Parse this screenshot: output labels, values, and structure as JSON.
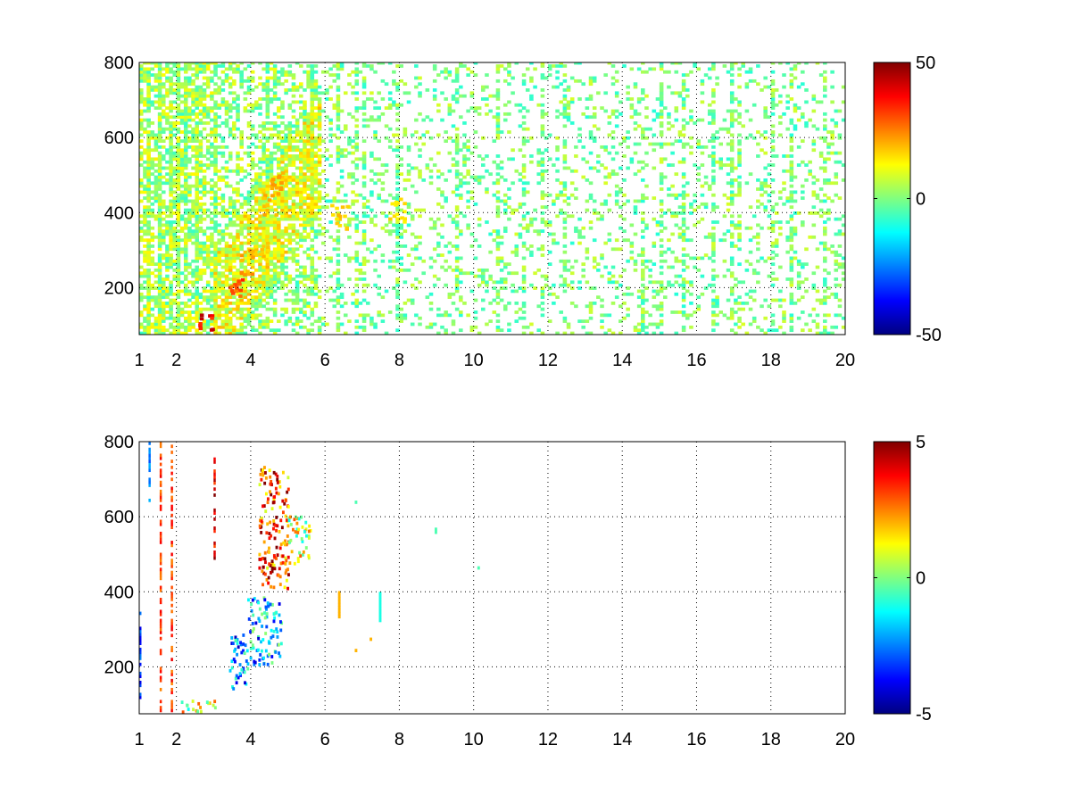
{
  "chart_data": [
    {
      "type": "heatmap",
      "title": "",
      "xlabel": "",
      "ylabel": "",
      "xlim": [
        1,
        20
      ],
      "ylim": [
        75,
        800
      ],
      "xticks": [
        1,
        2,
        4,
        6,
        8,
        10,
        12,
        14,
        16,
        18,
        20
      ],
      "yticks": [
        200,
        400,
        600,
        800
      ],
      "grid": true,
      "colormap": "jet",
      "colorbar": {
        "min": -50,
        "max": 50,
        "ticks": [
          -50,
          0,
          50
        ]
      },
      "structure": {
        "persistent_columns_x": [
          1.2,
          1.5,
          1.8,
          2.0,
          2.2,
          2.5,
          3.0,
          4.4,
          5.6,
          6.3,
          6.8,
          7.0,
          7.9,
          9.5,
          10.6,
          11.3,
          11.8,
          12.4,
          14.5,
          15.0,
          15.6,
          16.4,
          16.9,
          17.1,
          18.0,
          18.5,
          19.4
        ],
        "high_values": [
          {
            "x": 2.75,
            "y": 90,
            "value": 45
          },
          {
            "x": 3.6,
            "y": 200,
            "value": 35
          },
          {
            "x": 3.8,
            "y": 260,
            "value": 25
          },
          {
            "x": 4.2,
            "y": 300,
            "value": 20
          },
          {
            "x": 4.5,
            "y": 420,
            "value": 22
          },
          {
            "x": 4.7,
            "y": 480,
            "value": 25
          },
          {
            "x": 6.35,
            "y": 380,
            "value": 20
          },
          {
            "x": 7.9,
            "y": 400,
            "value": 18
          }
        ]
      }
    },
    {
      "type": "heatmap",
      "title": "",
      "xlabel": "",
      "ylabel": "",
      "xlim": [
        1,
        20
      ],
      "ylim": [
        75,
        800
      ],
      "xticks": [
        1,
        2,
        4,
        6,
        8,
        10,
        12,
        14,
        16,
        18,
        20
      ],
      "yticks": [
        200,
        400,
        600,
        800
      ],
      "grid": true,
      "colormap": "jet",
      "colorbar": {
        "min": -5,
        "max": 5,
        "ticks": [
          -5,
          0,
          5
        ]
      },
      "structure": {
        "column_lines": [
          {
            "x": 1.25,
            "y0": 640,
            "y1": 800,
            "value": -3
          },
          {
            "x": 1.55,
            "y0": 80,
            "y1": 800,
            "value": 4
          },
          {
            "x": 1.85,
            "y0": 80,
            "y1": 790,
            "value": 4
          },
          {
            "x": 3.0,
            "y0": 470,
            "y1": 760,
            "value": 5
          },
          {
            "x": 1.0,
            "y0": 75,
            "y1": 340,
            "value": -4
          }
        ],
        "clusters": [
          {
            "x": [
              2.0,
              3.1
            ],
            "y": [
              75,
              105
            ],
            "value": 0.8
          },
          {
            "x": [
              3.4,
              3.9
            ],
            "y": [
              130,
              290
            ],
            "value": -2.5
          },
          {
            "x": [
              3.9,
              4.8
            ],
            "y": [
              200,
              380
            ],
            "value": -2
          },
          {
            "x": [
              4.2,
              5.0
            ],
            "y": [
              400,
              740
            ],
            "value": 3
          },
          {
            "x": [
              5.0,
              5.6
            ],
            "y": [
              470,
              600
            ],
            "value": 1
          }
        ],
        "isolated": [
          {
            "x": 6.35,
            "y": 330,
            "y1": 400,
            "value": 2
          },
          {
            "x": 6.8,
            "y": 240,
            "value": 2
          },
          {
            "x": 7.45,
            "y": 320,
            "y1": 400,
            "value": -1
          },
          {
            "x": 7.2,
            "y": 270,
            "value": 2
          },
          {
            "x": 6.8,
            "y": 635,
            "value": -0.5
          },
          {
            "x": 8.95,
            "y": 555,
            "y1": 570,
            "value": -0.5
          },
          {
            "x": 10.1,
            "y": 460,
            "value": -0.5
          }
        ]
      }
    }
  ]
}
